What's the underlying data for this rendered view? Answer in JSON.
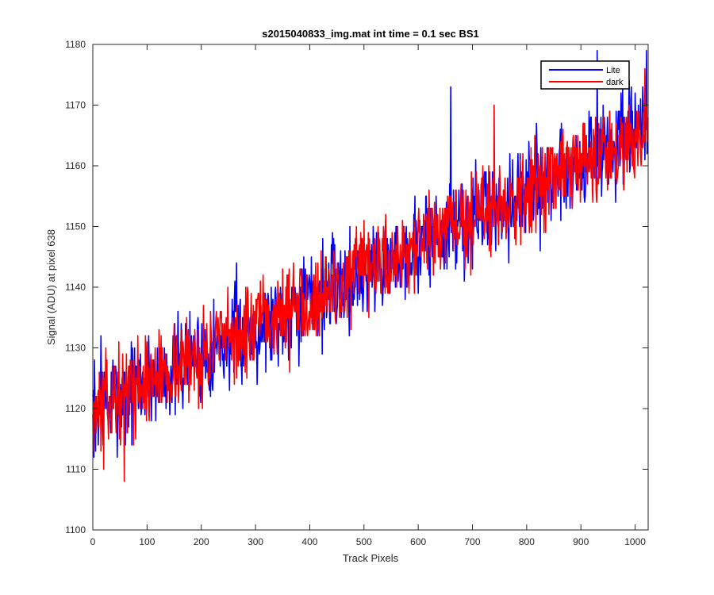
{
  "chart_data": {
    "type": "line",
    "title": "s2015040833_img.mat int time = 0.1 sec   BS1",
    "xlabel": "Track Pixels",
    "ylabel": "Signal (ADU) at pixel 638",
    "xlim": [
      0,
      1024
    ],
    "ylim": [
      1100,
      1180
    ],
    "xticks": [
      0,
      100,
      200,
      300,
      400,
      500,
      600,
      700,
      800,
      900,
      1000
    ],
    "yticks": [
      1100,
      1110,
      1120,
      1130,
      1140,
      1150,
      1160,
      1170,
      1180
    ],
    "grid": false,
    "legend_position": "top-right",
    "series": [
      {
        "name": "Lite",
        "color": "#0000ff",
        "trend_start": 1120,
        "trend_end": 1166,
        "noise_amplitude": 5,
        "seed": 7,
        "num_points": 1024,
        "annotated_points": [
          [
            5,
            1113
          ],
          [
            15,
            1132
          ],
          [
            60,
            1114
          ],
          [
            265,
            1144
          ],
          [
            660,
            1173
          ],
          [
            930,
            1179
          ],
          [
            1021,
            1179
          ]
        ]
      },
      {
        "name": "dark",
        "color": "#ff0000",
        "trend_start": 1120,
        "trend_end": 1166,
        "noise_amplitude": 4.5,
        "seed": 13,
        "num_points": 1024,
        "annotated_points": [
          [
            20,
            1110
          ],
          [
            58,
            1108
          ],
          [
            290,
            1128
          ],
          [
            740,
            1170
          ],
          [
            1018,
            1176
          ]
        ]
      }
    ]
  }
}
